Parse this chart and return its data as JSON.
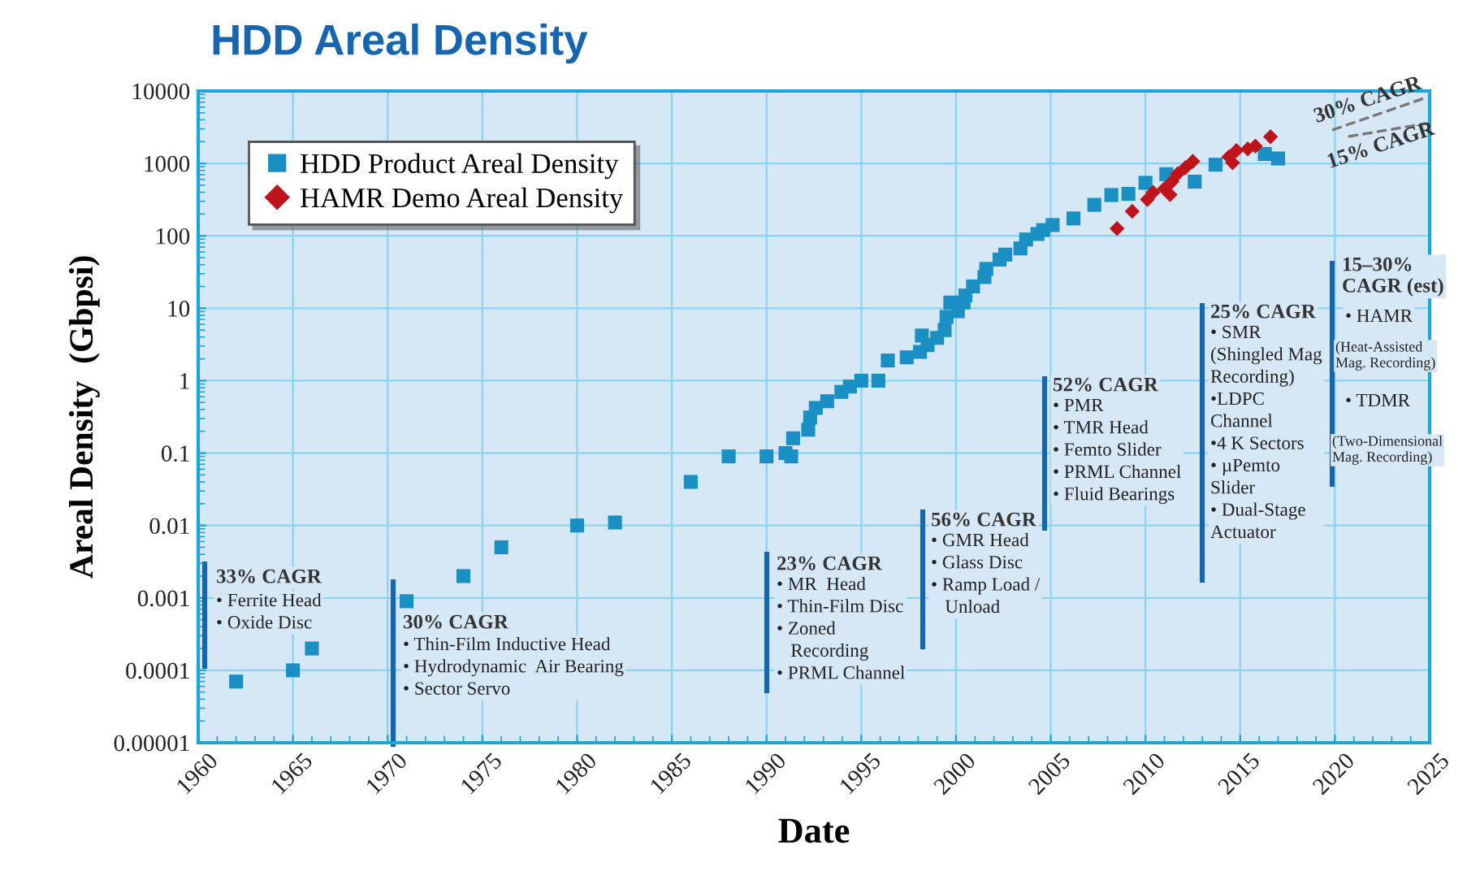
{
  "chart_data": {
    "type": "scatter",
    "title": "HDD Areal Density",
    "xlabel": "Date",
    "ylabel": "Areal Density  (Gbpsi)",
    "log": "y",
    "grid": true,
    "legend": "top left",
    "xlim": [
      1960,
      2025
    ],
    "xticks": [
      1960,
      1965,
      1970,
      1975,
      1980,
      1985,
      1990,
      1995,
      2000,
      2005,
      2010,
      2015,
      2020,
      2025
    ],
    "ylim": [
      1e-05,
      10000
    ],
    "yticks": [
      {
        "value": 1e-05,
        "label": "0.00001"
      },
      {
        "value": 0.0001,
        "label": "0.0001"
      },
      {
        "value": 0.001,
        "label": "0.001"
      },
      {
        "value": 0.01,
        "label": "0.01"
      },
      {
        "value": 0.1,
        "label": "0.1"
      },
      1,
      10,
      100,
      1000,
      10000
    ],
    "series": [
      {
        "name": "HDD Product Areal Density",
        "color": "#1a8fc4",
        "marker": "square",
        "x": [
          1962,
          1965,
          1966,
          1971,
          1974,
          1976,
          1980,
          1982,
          1986,
          1988,
          1990,
          1991,
          1991.3,
          1991.4,
          1992.2,
          1992.3,
          1992.6,
          1993.2,
          1993.95,
          1994.4,
          1995,
          1995.9,
          1996.4,
          1997.4,
          1998.1,
          1998.2,
          1998.5,
          1999,
          1999.4,
          1999.5,
          1999.7,
          2000.1,
          2000.4,
          2000.5,
          2000.9,
          2001.5,
          2001.6,
          2002.3,
          2002.6,
          2003.4,
          2003.7,
          2004.3,
          2004.6,
          2005.1,
          2006.2,
          2007.3,
          2008.2,
          2009.1,
          2010,
          2011.1,
          2012.6,
          2013.7,
          2016.3,
          2017
        ],
        "values": [
          7e-05,
          0.0001,
          0.0002,
          0.0009,
          0.002,
          0.005,
          0.01,
          0.011,
          0.04,
          0.09,
          0.09,
          0.1,
          0.09,
          0.16,
          0.21,
          0.31,
          0.42,
          0.52,
          0.7,
          0.83,
          1,
          1,
          1.9,
          2.1,
          2.5,
          4.2,
          3.1,
          3.9,
          5,
          7.6,
          12,
          9.1,
          12,
          15,
          20,
          27,
          35,
          47,
          55,
          67,
          89,
          106,
          120,
          141,
          174,
          268,
          366,
          380,
          540,
          710,
          560,
          960,
          1350,
          1170
        ]
      },
      {
        "name": "HAMR Demo Areal Density",
        "color": "#c0141c",
        "marker": "diamond",
        "x": [
          2008.5,
          2009.3,
          2010.1,
          2010.4,
          2011,
          2011.3,
          2011.4,
          2011.7,
          2012.1,
          2012.5,
          2014.4,
          2014.6,
          2014.8,
          2015.4,
          2015.8,
          2016.6
        ],
        "values": [
          126,
          218,
          318,
          398,
          447,
          370,
          560,
          720,
          870,
          1070,
          1230,
          1020,
          1510,
          1590,
          1740,
          2340
        ]
      }
    ],
    "annotations": [
      "33% CAGR",
      "• Ferrite Head\n• Oxide Disc",
      "30% CAGR",
      "• Thin-Film Inductive Head\n• Hydrodynamic  Air Bearing\n• Sector Servo",
      "23% CAGR",
      "• MR  Head\n• Thin-Film Disc\n• Zoned\n   Recording\n• PRML Channel",
      "56% CAGR",
      "• GMR Head\n• Glass Disc\n• Ramp Load /\n   Unload",
      "52% CAGR",
      "• PMR\n• TMR Head\n• Femto Slider\n• PRML Channel\n• Fluid Bearings",
      "25% CAGR",
      "• SMR\n(Shingled Mag\nRecording)\n•LDPC\nChannel\n•4 K Sectors\n• µPemto\nSlider\n• Dual-Stage\nActuator",
      "15–30%\nCAGR (est)",
      "• HAMR",
      "(Heat-Assisted\nMag. Recording)",
      "• TDMR",
      "(Two-Dimensional\nMag. Recording)",
      "30% CAGR",
      "15% CAGR"
    ]
  }
}
